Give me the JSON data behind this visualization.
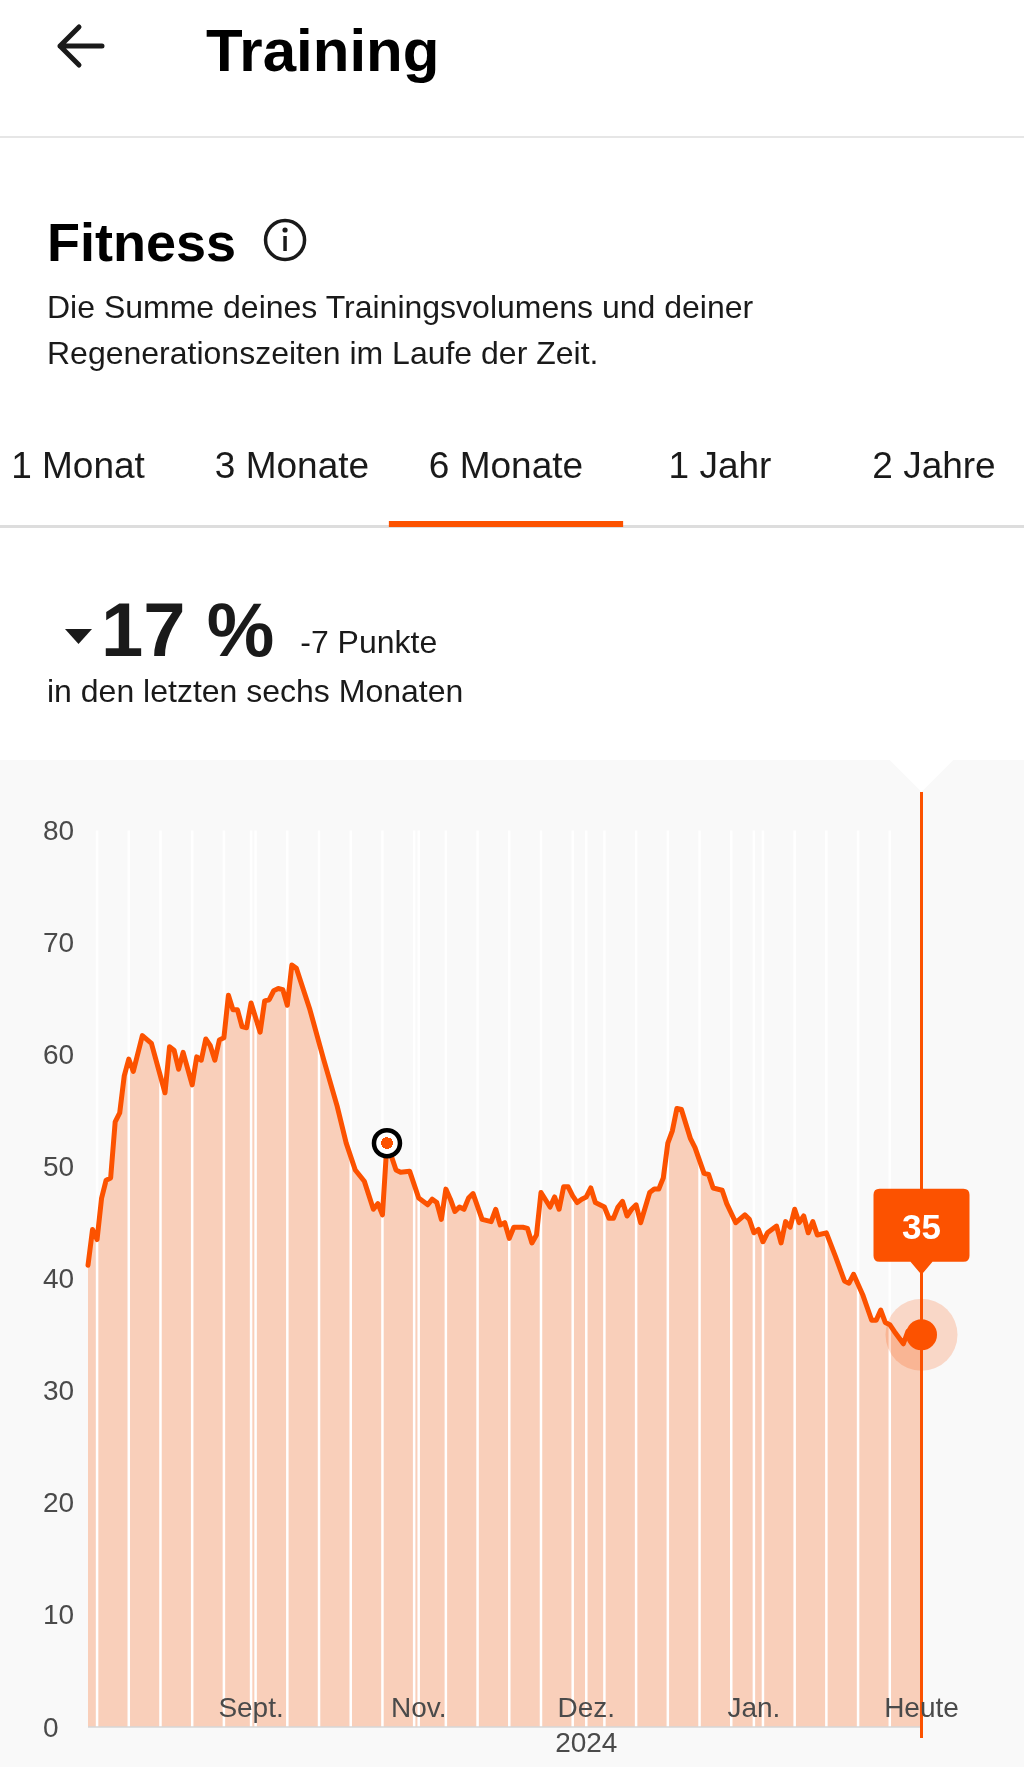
{
  "chart_data": {
    "type": "area",
    "title": "Training",
    "subtitle": "Fitness",
    "annotations": [
      "Die Summe deines Trainingsvolumens und deiner Regenerationszeiten im Laufe der Zeit.",
      "1 Monat",
      "3 Monate",
      "6 Monate",
      "1 Jahr",
      "2 Jahre",
      "17 %",
      "-7 Punkte",
      "in den letzten sechs Monaten",
      {
        "text": "35",
        "x": "2025-02-20",
        "y": 35
      }
    ],
    "series": [
      {
        "color": "#fc5200",
        "x": [
          "2024-08-20",
          "2024-08-21",
          "2024-08-22",
          "2024-08-23",
          "2024-08-24",
          "2024-08-25",
          "2024-08-26",
          "2024-08-27",
          "2024-08-28",
          "2024-08-29",
          "2024-08-30",
          "2024-09-01",
          "2024-09-03",
          "2024-09-06",
          "2024-09-07",
          "2024-09-08",
          "2024-09-09",
          "2024-09-10",
          "2024-09-12",
          "2024-09-13",
          "2024-09-14",
          "2024-09-15",
          "2024-09-16",
          "2024-09-17",
          "2024-09-18",
          "2024-09-19",
          "2024-09-20",
          "2024-09-21",
          "2024-09-22",
          "2024-09-23",
          "2024-09-24",
          "2024-09-25",
          "2024-09-27",
          "2024-09-28",
          "2024-09-29",
          "2024-09-30",
          "2024-10-01",
          "2024-10-02",
          "2024-10-03",
          "2024-10-04",
          "2024-10-05",
          "2024-10-08",
          "2024-10-11",
          "2024-10-14",
          "2024-10-16",
          "2024-10-18",
          "2024-10-20",
          "2024-10-22",
          "2024-10-23",
          "2024-10-24",
          "2024-10-25",
          "2024-10-27",
          "2024-10-28",
          "2024-10-30",
          "2024-11-01",
          "2024-11-03",
          "2024-11-04",
          "2024-11-05",
          "2024-11-06",
          "2024-11-07",
          "2024-11-08",
          "2024-11-09",
          "2024-11-10",
          "2024-11-11",
          "2024-11-12",
          "2024-11-13",
          "2024-11-15",
          "2024-11-17",
          "2024-11-18",
          "2024-11-19",
          "2024-11-20",
          "2024-11-21",
          "2024-11-22",
          "2024-11-24",
          "2024-11-25",
          "2024-11-26",
          "2024-11-27",
          "2024-11-28",
          "2024-11-30",
          "2024-12-01",
          "2024-12-02",
          "2024-12-03",
          "2024-12-04",
          "2024-12-05",
          "2024-12-06",
          "2024-12-07",
          "2024-12-08",
          "2024-12-09",
          "2024-12-10",
          "2024-12-12",
          "2024-12-13",
          "2024-12-14",
          "2024-12-15",
          "2024-12-16",
          "2024-12-17",
          "2024-12-18",
          "2024-12-19",
          "2024-12-20",
          "2024-12-22",
          "2024-12-23",
          "2024-12-24",
          "2024-12-25",
          "2024-12-26",
          "2024-12-27",
          "2024-12-28",
          "2024-12-29",
          "2024-12-31",
          "2025-01-01",
          "2025-01-03",
          "2025-01-04",
          "2025-01-05",
          "2025-01-07",
          "2025-01-08",
          "2025-01-10",
          "2025-01-12",
          "2025-01-13",
          "2025-01-14",
          "2025-01-15",
          "2025-01-16",
          "2025-01-17",
          "2025-01-19",
          "2025-01-20",
          "2025-01-21",
          "2025-01-22",
          "2025-01-23",
          "2025-01-24",
          "2025-01-25",
          "2025-01-26",
          "2025-01-27",
          "2025-01-28",
          "2025-01-30",
          "2025-02-01",
          "2025-02-03",
          "2025-02-04",
          "2025-02-05",
          "2025-02-07",
          "2025-02-09",
          "2025-02-10",
          "2025-02-11",
          "2025-02-12",
          "2025-02-13",
          "2025-02-14",
          "2025-02-16",
          "2025-02-17",
          "2025-02-18",
          "2025-02-20"
        ],
        "values": [
          41.2,
          44.4,
          43.5,
          47.2,
          48.8,
          49.0,
          54.0,
          54.8,
          58.1,
          59.6,
          58.5,
          61.7,
          61.0,
          56.6,
          60.7,
          60.4,
          58.7,
          60.2,
          57.3,
          59.8,
          59.5,
          61.4,
          60.8,
          59.5,
          61.3,
          61.5,
          65.3,
          64.0,
          64.0,
          62.5,
          62.4,
          64.6,
          62.0,
          64.8,
          64.9,
          65.7,
          65.9,
          65.8,
          64.4,
          68.0,
          67.7,
          64.0,
          59.6,
          55.4,
          52.1,
          49.7,
          48.7,
          46.2,
          46.7,
          45.7,
          52.1,
          49.7,
          49.5,
          49.6,
          47.2,
          46.6,
          47.1,
          46.8,
          45.3,
          48.0,
          47.1,
          46.0,
          46.4,
          46.2,
          47.2,
          47.6,
          45.3,
          45.1,
          46.2,
          44.8,
          45.0,
          43.6,
          44.6,
          44.6,
          44.5,
          43.2,
          43.9,
          47.7,
          46.4,
          47.3,
          46.2,
          48.2,
          48.2,
          47.4,
          46.8,
          47.1,
          47.3,
          48.1,
          46.8,
          46.4,
          45.4,
          45.4,
          46.4,
          46.9,
          45.6,
          46.2,
          46.6,
          45.0,
          47.7,
          48.0,
          48.0,
          49.0,
          52.1,
          53.2,
          55.2,
          55.1,
          52.5,
          51.7,
          49.4,
          49.3,
          48.1,
          47.9,
          46.7,
          45.0,
          45.7,
          45.3,
          44.1,
          44.4,
          43.3,
          44.1,
          44.7,
          43.2,
          45.1,
          44.6,
          46.2,
          45.0,
          45.6,
          44.1,
          45.1,
          43.9,
          44.1,
          42.0,
          39.8,
          39.6,
          40.4,
          38.6,
          36.3,
          36.3,
          37.2,
          36.1,
          35.9,
          35.3,
          34.2,
          35.3,
          34.5,
          35
        ]
      },
      {
        "type": "scatter",
        "color": "#000000",
        "marker": "circle",
        "x": [
          "2024-10-25"
        ],
        "values": [
          52.1
        ]
      }
    ],
    "xlim": [
      "2024-08-20",
      "2025-02-20"
    ],
    "xticks": [
      {
        "value": "2024-08-22",
        "label": null
      },
      {
        "value": "2024-08-29",
        "label": null
      },
      {
        "value": "2024-09-05",
        "label": null
      },
      {
        "value": "2024-09-12",
        "label": null
      },
      {
        "value": "2024-09-19",
        "label": null
      },
      {
        "value": "2024-09-25",
        "label": "Sept."
      },
      {
        "value": "2024-09-26",
        "label": null
      },
      {
        "value": "2024-10-03",
        "label": null
      },
      {
        "value": "2024-10-10",
        "label": null
      },
      {
        "value": "2024-10-17",
        "label": null
      },
      {
        "value": "2024-10-24",
        "label": null
      },
      {
        "value": "2024-10-31",
        "label": null
      },
      {
        "value": "2024-11-01",
        "label": "Nov."
      },
      {
        "value": "2024-11-07",
        "label": null
      },
      {
        "value": "2024-11-14",
        "label": null
      },
      {
        "value": "2024-11-21",
        "label": null
      },
      {
        "value": "2024-11-28",
        "label": null
      },
      {
        "value": "2024-12-05",
        "label": null
      },
      {
        "value": "2024-12-08",
        "label": "Dez.\n2024"
      },
      {
        "value": "2024-12-12",
        "label": null
      },
      {
        "value": "2024-12-19",
        "label": null
      },
      {
        "value": "2024-12-26",
        "label": null
      },
      {
        "value": "2025-01-02",
        "label": null
      },
      {
        "value": "2025-01-09",
        "label": null
      },
      {
        "value": "2025-01-14",
        "label": "Jan."
      },
      {
        "value": "2025-01-16",
        "label": null
      },
      {
        "value": "2025-01-23",
        "label": null
      },
      {
        "value": "2025-01-30",
        "label": null
      },
      {
        "value": "2025-02-06",
        "label": null
      },
      {
        "value": "2025-02-13",
        "label": null
      },
      {
        "value": "2025-02-20",
        "label": "Heute"
      }
    ],
    "ylim": [
      0,
      80
    ],
    "yticks": [
      0,
      10,
      20,
      30,
      40,
      50,
      60,
      70,
      80
    ],
    "grid": "x",
    "line_style": "solid",
    "ref_lines": [
      {
        "axis": "x",
        "value": "2025-02-20",
        "color": "#fc5200"
      }
    ]
  }
}
